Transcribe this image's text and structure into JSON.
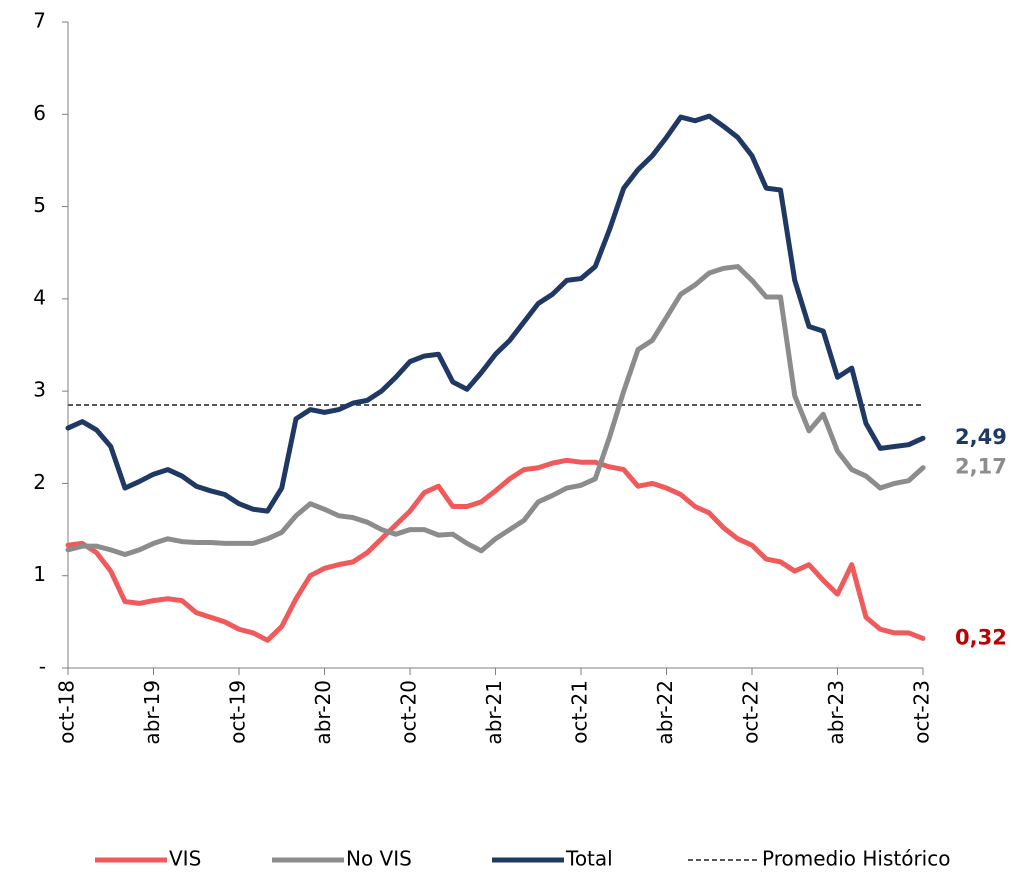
{
  "chart_data": {
    "type": "line",
    "categories": [
      "oct-18",
      null,
      null,
      null,
      null,
      null,
      "abr-19",
      null,
      null,
      null,
      null,
      null,
      "oct-19",
      null,
      null,
      null,
      null,
      null,
      "abr-20",
      null,
      null,
      null,
      null,
      null,
      "oct-20",
      null,
      null,
      null,
      null,
      null,
      "abr-21",
      null,
      null,
      null,
      null,
      null,
      "oct-21",
      null,
      null,
      null,
      null,
      null,
      "abr-22",
      null,
      null,
      null,
      null,
      null,
      "oct-22",
      null,
      null,
      null,
      null,
      null,
      "abr-23",
      null,
      null,
      null,
      null,
      null,
      "oct-23"
    ],
    "series": [
      {
        "name": "VIS",
        "color": "#f15a5a",
        "label_color": "#c00000",
        "end_label": "0,32",
        "values": [
          1.33,
          1.35,
          1.25,
          1.05,
          0.72,
          0.7,
          0.73,
          0.75,
          0.73,
          0.6,
          0.55,
          0.5,
          0.42,
          0.38,
          0.3,
          0.45,
          0.75,
          1.0,
          1.08,
          1.12,
          1.15,
          1.25,
          1.4,
          1.55,
          1.7,
          1.9,
          1.97,
          1.75,
          1.75,
          1.8,
          1.92,
          2.05,
          2.15,
          2.17,
          2.22,
          2.25,
          2.23,
          2.23,
          2.18,
          2.15,
          1.97,
          2.0,
          1.95,
          1.88,
          1.75,
          1.68,
          1.52,
          1.4,
          1.33,
          1.18,
          1.15,
          1.05,
          1.12,
          0.95,
          0.8,
          1.12,
          0.55,
          0.42,
          0.38,
          0.38,
          0.32
        ]
      },
      {
        "name": "No VIS",
        "color": "#8c8c8c",
        "label_color": "#8c8c8c",
        "end_label": "2,17",
        "values": [
          1.28,
          1.32,
          1.32,
          1.28,
          1.23,
          1.28,
          1.35,
          1.4,
          1.37,
          1.36,
          1.36,
          1.35,
          1.35,
          1.35,
          1.4,
          1.47,
          1.65,
          1.78,
          1.72,
          1.65,
          1.63,
          1.58,
          1.5,
          1.45,
          1.5,
          1.5,
          1.44,
          1.45,
          1.35,
          1.27,
          1.4,
          1.5,
          1.6,
          1.8,
          1.87,
          1.95,
          1.98,
          2.05,
          2.5,
          3.0,
          3.45,
          3.55,
          3.8,
          4.05,
          4.15,
          4.28,
          4.33,
          4.35,
          4.2,
          4.02,
          4.02,
          2.95,
          2.57,
          2.75,
          2.35,
          2.15,
          2.08,
          1.95,
          2.0,
          2.03,
          2.17
        ]
      },
      {
        "name": "Total",
        "color": "#1f3864",
        "label_color": "#1f3864",
        "end_label": "2,49",
        "values": [
          2.6,
          2.67,
          2.58,
          2.4,
          1.95,
          2.02,
          2.1,
          2.15,
          2.08,
          1.97,
          1.92,
          1.88,
          1.78,
          1.72,
          1.7,
          1.95,
          2.7,
          2.8,
          2.77,
          2.8,
          2.87,
          2.9,
          3.0,
          3.15,
          3.32,
          3.38,
          3.4,
          3.1,
          3.02,
          3.2,
          3.4,
          3.55,
          3.75,
          3.95,
          4.05,
          4.2,
          4.22,
          4.35,
          4.75,
          5.2,
          5.4,
          5.55,
          5.75,
          5.97,
          5.93,
          5.98,
          5.87,
          5.75,
          5.55,
          5.2,
          5.18,
          4.2,
          3.7,
          3.65,
          3.15,
          3.25,
          2.65,
          2.38,
          2.4,
          2.42,
          2.49
        ]
      }
    ],
    "reference_line": {
      "name": "Promedio Histórico",
      "value": 2.85,
      "color": "#595959"
    },
    "ylim": [
      0,
      7
    ],
    "yticks": [
      {
        "value": 0,
        "label": "-"
      },
      1,
      2,
      3,
      4,
      5,
      6,
      7
    ],
    "legend": "bottom"
  }
}
